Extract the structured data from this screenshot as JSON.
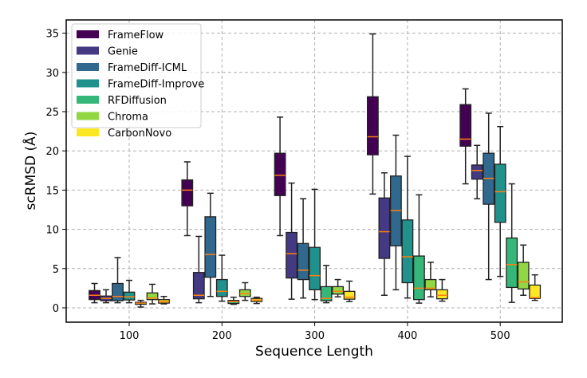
{
  "chart_data": {
    "type": "box",
    "xlabel": "Sequence Length",
    "ylabel": "scRMSD (Å)",
    "ylim": [
      -1.8,
      36.5
    ],
    "yticks": [
      0,
      5,
      10,
      15,
      20,
      25,
      30,
      35
    ],
    "categories": [
      "100",
      "200",
      "300",
      "400",
      "500"
    ],
    "grid": true,
    "legend_position": "top-left",
    "median_color": "#ff7f0e",
    "series": [
      {
        "name": "FrameFlow",
        "color": "#440154",
        "boxes": [
          {
            "whislo": 0.65,
            "q1": 1.05,
            "med": 1.6,
            "q3": 2.2,
            "whishi": 3.1
          },
          {
            "whislo": 9.2,
            "q1": 13.0,
            "med": 15.0,
            "q3": 16.3,
            "whishi": 18.6
          },
          {
            "whislo": 9.2,
            "q1": 14.3,
            "med": 16.9,
            "q3": 19.7,
            "whishi": 24.3
          },
          {
            "whislo": 14.5,
            "q1": 19.5,
            "med": 21.8,
            "q3": 26.9,
            "whishi": 34.9
          },
          {
            "whislo": 15.8,
            "q1": 20.6,
            "med": 21.5,
            "q3": 25.9,
            "whishi": 27.9
          }
        ]
      },
      {
        "name": "Genie",
        "color": "#443983",
        "boxes": [
          {
            "whislo": 0.65,
            "q1": 0.9,
            "med": 1.2,
            "q3": 1.5,
            "whishi": 2.3
          },
          {
            "whislo": 0.65,
            "q1": 1.15,
            "med": 1.6,
            "q3": 4.5,
            "whishi": 9.1
          },
          {
            "whislo": 1.1,
            "q1": 3.8,
            "med": 6.9,
            "q3": 9.6,
            "whishi": 15.9
          },
          {
            "whislo": 1.6,
            "q1": 6.3,
            "med": 9.7,
            "q3": 14.0,
            "whishi": 17.2
          },
          {
            "whislo": 13.9,
            "q1": 16.4,
            "med": 17.5,
            "q3": 18.2,
            "whishi": 20.7
          }
        ]
      },
      {
        "name": "FrameDiff-ICML",
        "color": "#31688e",
        "boxes": [
          {
            "whislo": 0.65,
            "q1": 0.9,
            "med": 1.45,
            "q3": 3.1,
            "whishi": 6.4
          },
          {
            "whislo": 1.45,
            "q1": 3.9,
            "med": 6.8,
            "q3": 11.6,
            "whishi": 14.6
          },
          {
            "whislo": 1.25,
            "q1": 3.6,
            "med": 4.8,
            "q3": 8.2,
            "whishi": 13.9
          },
          {
            "whislo": 2.3,
            "q1": 7.9,
            "med": 12.4,
            "q3": 16.8,
            "whishi": 22.0
          },
          {
            "whislo": 3.6,
            "q1": 13.2,
            "med": 16.5,
            "q3": 19.7,
            "whishi": 24.8
          }
        ]
      },
      {
        "name": "FrameDiff-Improve",
        "color": "#21918c",
        "boxes": [
          {
            "whislo": 0.65,
            "q1": 1.0,
            "med": 1.4,
            "q3": 2.0,
            "whishi": 3.5
          },
          {
            "whislo": 0.85,
            "q1": 1.45,
            "med": 2.1,
            "q3": 3.6,
            "whishi": 6.7
          },
          {
            "whislo": 1.05,
            "q1": 2.3,
            "med": 4.1,
            "q3": 7.7,
            "whishi": 15.1
          },
          {
            "whislo": 1.25,
            "q1": 3.2,
            "med": 6.5,
            "q3": 11.2,
            "whishi": 19.3
          },
          {
            "whislo": 4.0,
            "q1": 10.9,
            "med": 14.8,
            "q3": 18.3,
            "whishi": 23.1
          }
        ]
      },
      {
        "name": "RFDiffusion",
        "color": "#35b779",
        "boxes": [
          {
            "whislo": 0.1,
            "q1": 0.45,
            "med": 0.6,
            "q3": 0.7,
            "whishi": 0.95
          },
          {
            "whislo": 0.45,
            "q1": 0.55,
            "med": 0.8,
            "q3": 0.95,
            "whishi": 1.35
          },
          {
            "whislo": 0.65,
            "q1": 0.9,
            "med": 1.2,
            "q3": 2.7,
            "whishi": 5.4
          },
          {
            "whislo": 0.6,
            "q1": 1.05,
            "med": 2.5,
            "q3": 6.6,
            "whishi": 14.4
          },
          {
            "whislo": 0.7,
            "q1": 2.6,
            "med": 5.5,
            "q3": 8.9,
            "whishi": 15.8
          }
        ]
      },
      {
        "name": "Chroma",
        "color": "#90d743",
        "boxes": [
          {
            "whislo": 0.5,
            "q1": 1.05,
            "med": 1.25,
            "q3": 1.9,
            "whishi": 3.0
          },
          {
            "whislo": 0.95,
            "q1": 1.45,
            "med": 1.8,
            "q3": 2.3,
            "whishi": 3.2
          },
          {
            "whislo": 1.4,
            "q1": 1.75,
            "med": 2.1,
            "q3": 2.7,
            "whishi": 3.6
          },
          {
            "whislo": 1.4,
            "q1": 2.3,
            "med": 2.5,
            "q3": 3.6,
            "whishi": 5.8
          },
          {
            "whislo": 1.6,
            "q1": 2.4,
            "med": 3.3,
            "q3": 5.8,
            "whishi": 8.0
          }
        ]
      },
      {
        "name": "CarbonNovo",
        "color": "#fde725",
        "boxes": [
          {
            "whislo": 0.5,
            "q1": 0.6,
            "med": 0.8,
            "q3": 1.05,
            "whishi": 1.45
          },
          {
            "whislo": 0.55,
            "q1": 0.8,
            "med": 1.0,
            "q3": 1.2,
            "whishi": 1.35
          },
          {
            "whislo": 0.8,
            "q1": 1.1,
            "med": 1.35,
            "q3": 2.1,
            "whishi": 3.4
          },
          {
            "whislo": 0.85,
            "q1": 1.15,
            "med": 1.6,
            "q3": 2.3,
            "whishi": 3.6
          },
          {
            "whislo": 0.95,
            "q1": 1.2,
            "med": 1.3,
            "q3": 2.9,
            "whishi": 4.2
          }
        ]
      }
    ]
  }
}
